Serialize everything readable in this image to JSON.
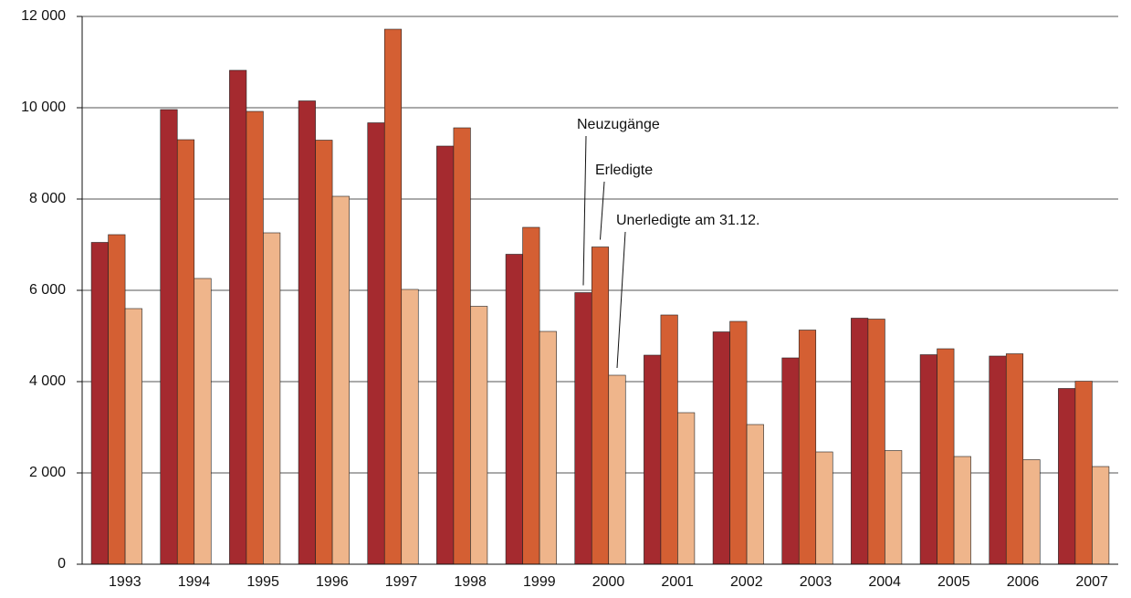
{
  "chart_data": {
    "type": "bar",
    "categories": [
      "1993",
      "1994",
      "1995",
      "1996",
      "1997",
      "1998",
      "1999",
      "2000",
      "2001",
      "2002",
      "2003",
      "2004",
      "2005",
      "2006",
      "2007"
    ],
    "series": [
      {
        "name": "Neuzugänge",
        "color": "#a52a2f",
        "values": [
          7050,
          9960,
          10820,
          10150,
          9670,
          9160,
          6790,
          5950,
          4580,
          5090,
          4520,
          5390,
          4590,
          4560,
          3850
        ]
      },
      {
        "name": "Erledigte",
        "color": "#d45f33",
        "values": [
          7220,
          9300,
          9920,
          9290,
          11720,
          9560,
          7380,
          6950,
          5460,
          5320,
          5130,
          5370,
          4720,
          4610,
          4010
        ]
      },
      {
        "name": "Unerledigte am 31.12.",
        "color": "#efb58b",
        "values": [
          5600,
          6260,
          7260,
          8060,
          6020,
          5650,
          5100,
          4140,
          3320,
          3060,
          2460,
          2490,
          2360,
          2290,
          2140
        ]
      }
    ],
    "ylim": [
      0,
      12000
    ],
    "yticks": [
      0,
      {
        "value": 2000,
        "label": "2 000"
      },
      {
        "value": 4000,
        "label": "4 000"
      },
      {
        "value": 6000,
        "label": "6 000"
      },
      {
        "value": 8000,
        "label": "8 000"
      },
      {
        "value": 10000,
        "label": "10 000"
      },
      {
        "value": 12000,
        "label": "12 000"
      }
    ],
    "grid": true
  }
}
